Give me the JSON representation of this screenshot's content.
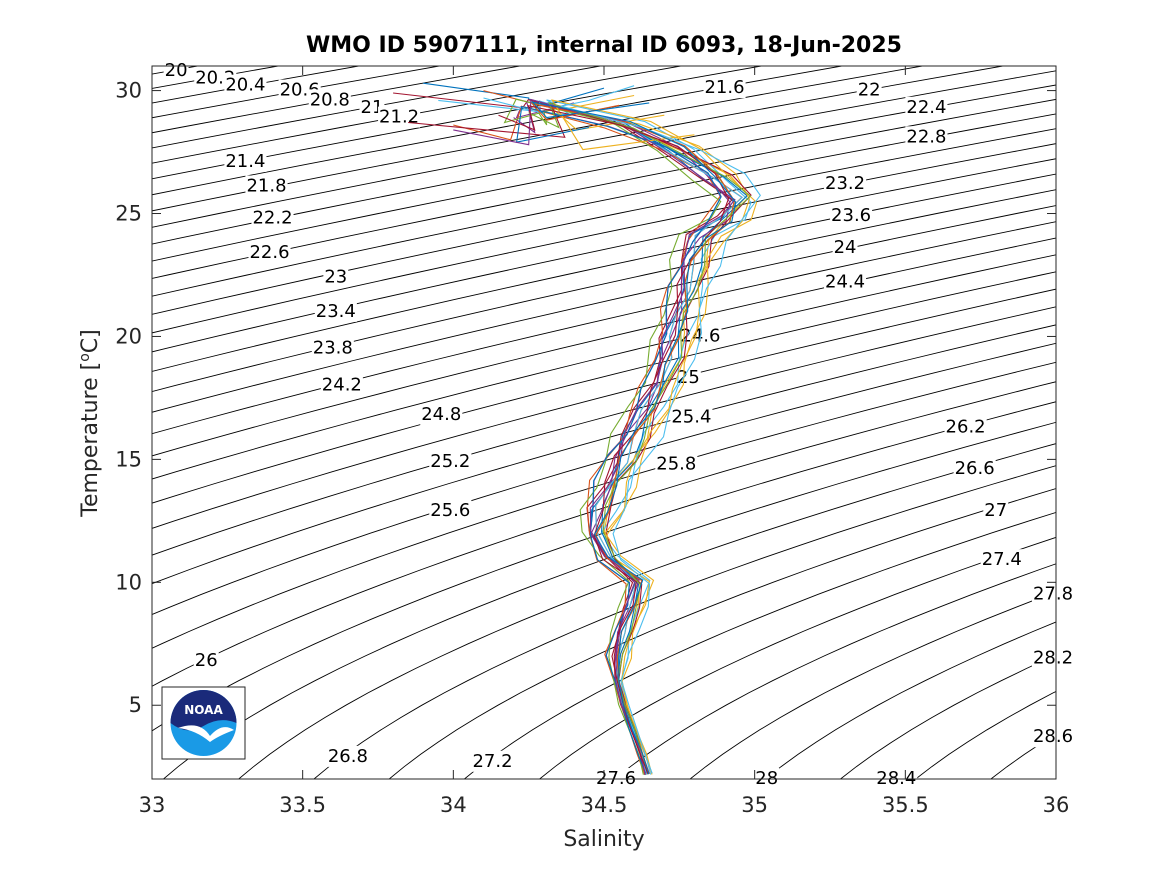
{
  "chart_data": {
    "type": "line",
    "title": "WMO ID 5907111, internal ID 6093, 18-Jun-2025",
    "xlabel": "Salinity",
    "ylabel": "Temperature [",
    "ylabel_sup": "o",
    "ylabel_unit": "C]",
    "xlim": [
      33,
      36
    ],
    "ylim": [
      2,
      31
    ],
    "xticks": [
      33,
      33.5,
      34,
      34.5,
      35,
      35.5,
      36
    ],
    "xtick_labels": [
      "33",
      "33.5",
      "34",
      "34.5",
      "35",
      "35.5",
      "36"
    ],
    "yticks": [
      5,
      10,
      15,
      20,
      25,
      30
    ],
    "ytick_labels": [
      "5",
      "10",
      "15",
      "20",
      "25",
      "30"
    ],
    "grid": false,
    "logo": "NOAA",
    "density_contours": {
      "levels_start": 20,
      "levels_end": 28.8,
      "levels_step": 0.2,
      "labels": [
        {
          "text": "20",
          "s": 33.08,
          "t": 30.8
        },
        {
          "text": "20.2",
          "s": 33.21,
          "t": 30.5
        },
        {
          "text": "20.4",
          "s": 33.31,
          "t": 30.2
        },
        {
          "text": "20.6",
          "s": 33.49,
          "t": 30.0
        },
        {
          "text": "20.8",
          "s": 33.59,
          "t": 29.6
        },
        {
          "text": "21",
          "s": 33.73,
          "t": 29.3
        },
        {
          "text": "21.2",
          "s": 33.82,
          "t": 28.9
        },
        {
          "text": "21.4",
          "s": 33.31,
          "t": 27.1
        },
        {
          "text": "21.8",
          "s": 33.38,
          "t": 26.1
        },
        {
          "text": "22.2",
          "s": 33.4,
          "t": 24.8
        },
        {
          "text": "22.6",
          "s": 33.39,
          "t": 23.4
        },
        {
          "text": "23",
          "s": 33.61,
          "t": 22.4
        },
        {
          "text": "23.4",
          "s": 33.61,
          "t": 21.0
        },
        {
          "text": "23.8",
          "s": 33.6,
          "t": 19.5
        },
        {
          "text": "24.2",
          "s": 33.63,
          "t": 18.0
        },
        {
          "text": "24.8",
          "s": 33.96,
          "t": 16.8
        },
        {
          "text": "25.2",
          "s": 33.99,
          "t": 14.9
        },
        {
          "text": "25.6",
          "s": 33.99,
          "t": 12.9
        },
        {
          "text": "26",
          "s": 33.18,
          "t": 6.8
        },
        {
          "text": "26.8",
          "s": 33.65,
          "t": 2.9
        },
        {
          "text": "27.2",
          "s": 34.13,
          "t": 2.7
        },
        {
          "text": "27.6",
          "s": 34.54,
          "t": 2.0
        },
        {
          "text": "28",
          "s": 35.04,
          "t": 2.0
        },
        {
          "text": "28.4",
          "s": 35.47,
          "t": 2.0
        },
        {
          "text": "21.6",
          "s": 34.9,
          "t": 30.1
        },
        {
          "text": "22",
          "s": 35.38,
          "t": 30.0
        },
        {
          "text": "22.4",
          "s": 35.57,
          "t": 29.3
        },
        {
          "text": "22.8",
          "s": 35.57,
          "t": 28.1
        },
        {
          "text": "23.2",
          "s": 35.3,
          "t": 26.2
        },
        {
          "text": "23.6",
          "s": 35.32,
          "t": 24.9
        },
        {
          "text": "24",
          "s": 35.3,
          "t": 23.6
        },
        {
          "text": "24.4",
          "s": 35.3,
          "t": 22.2
        },
        {
          "text": "24.6",
          "s": 34.82,
          "t": 20.0
        },
        {
          "text": "25",
          "s": 34.78,
          "t": 18.3
        },
        {
          "text": "25.4",
          "s": 34.79,
          "t": 16.7
        },
        {
          "text": "25.8",
          "s": 34.74,
          "t": 14.8
        },
        {
          "text": "26.2",
          "s": 35.7,
          "t": 16.3
        },
        {
          "text": "26.6",
          "s": 35.73,
          "t": 14.6
        },
        {
          "text": "27",
          "s": 35.8,
          "t": 12.9
        },
        {
          "text": "27.4",
          "s": 35.82,
          "t": 10.9
        },
        {
          "text": "27.8",
          "s": 35.99,
          "t": 9.5
        },
        {
          "text": "28.2",
          "s": 35.99,
          "t": 6.9
        },
        {
          "text": "28.6",
          "s": 35.99,
          "t": 3.7
        }
      ]
    },
    "series": [
      {
        "color": "#0072BD",
        "s_offset": 0.0,
        "t_scale": 1.0,
        "start_s": 33.9,
        "surface_t": 30.3
      },
      {
        "color": "#D95319",
        "s_offset": 0.02,
        "t_scale": 1.0,
        "start_s": 34.1,
        "surface_t": 30.0
      },
      {
        "color": "#EDB120",
        "s_offset": 0.05,
        "t_scale": 1.0,
        "start_s": 34.6,
        "surface_t": 29.8
      },
      {
        "color": "#7E2F8E",
        "s_offset": -0.02,
        "t_scale": 1.0,
        "start_s": 34.4,
        "surface_t": 29.5
      },
      {
        "color": "#77AC30",
        "s_offset": 0.03,
        "t_scale": 1.0,
        "start_s": 34.3,
        "surface_t": 29.2
      },
      {
        "color": "#4DBEEE",
        "s_offset": 0.07,
        "t_scale": 1.0,
        "start_s": 33.95,
        "surface_t": 29.6
      },
      {
        "color": "#A2142F",
        "s_offset": -0.01,
        "t_scale": 1.0,
        "start_s": 33.8,
        "surface_t": 29.9
      },
      {
        "color": "#0072BD",
        "s_offset": 0.04,
        "t_scale": 1.0,
        "start_s": 34.5,
        "surface_t": 30.1
      },
      {
        "color": "#D95319",
        "s_offset": -0.03,
        "t_scale": 1.0,
        "start_s": 34.0,
        "surface_t": 28.6
      },
      {
        "color": "#EDB120",
        "s_offset": 0.08,
        "t_scale": 1.0,
        "start_s": 34.7,
        "surface_t": 29.0
      },
      {
        "color": "#7E2F8E",
        "s_offset": 0.01,
        "t_scale": 1.0,
        "start_s": 34.2,
        "surface_t": 28.9
      },
      {
        "color": "#77AC30",
        "s_offset": -0.04,
        "t_scale": 1.0,
        "start_s": 34.35,
        "surface_t": 29.3
      },
      {
        "color": "#4DBEEE",
        "s_offset": 0.02,
        "t_scale": 1.0,
        "start_s": 34.1,
        "surface_t": 29.7
      },
      {
        "color": "#A2142F",
        "s_offset": 0.06,
        "t_scale": 1.0,
        "start_s": 33.85,
        "surface_t": 28.7
      },
      {
        "color": "#0072BD",
        "s_offset": -0.02,
        "t_scale": 1.0,
        "start_s": 34.45,
        "surface_t": 28.5
      },
      {
        "color": "#D95319",
        "s_offset": 0.03,
        "t_scale": 1.0,
        "start_s": 34.55,
        "surface_t": 29.4
      },
      {
        "color": "#EDB120",
        "s_offset": 0.09,
        "t_scale": 1.0,
        "start_s": 34.8,
        "surface_t": 28.2
      },
      {
        "color": "#7E2F8E",
        "s_offset": 0.0,
        "t_scale": 1.0,
        "start_s": 34.0,
        "surface_t": 28.4
      },
      {
        "color": "#77AC30",
        "s_offset": 0.05,
        "t_scale": 1.0,
        "start_s": 34.25,
        "surface_t": 29.1
      },
      {
        "color": "#4DBEEE",
        "s_offset": 0.1,
        "t_scale": 1.0,
        "start_s": 34.6,
        "surface_t": 30.2
      },
      {
        "color": "#A2142F",
        "s_offset": 0.01,
        "t_scale": 1.0,
        "start_s": 34.15,
        "surface_t": 29.0
      },
      {
        "color": "#0072BD",
        "s_offset": 0.03,
        "t_scale": 1.0,
        "start_s": 34.65,
        "surface_t": 29.5
      }
    ],
    "mean_profile": [
      [
        34.25,
        29.5
      ],
      [
        34.55,
        28.6
      ],
      [
        34.72,
        27.6
      ],
      [
        34.85,
        26.5
      ],
      [
        34.92,
        25.6
      ],
      [
        34.88,
        24.8
      ],
      [
        34.8,
        24.0
      ],
      [
        34.77,
        23.0
      ],
      [
        34.75,
        22.0
      ],
      [
        34.73,
        21.0
      ],
      [
        34.71,
        20.0
      ],
      [
        34.69,
        19.0
      ],
      [
        34.66,
        18.0
      ],
      [
        34.62,
        17.0
      ],
      [
        34.58,
        16.0
      ],
      [
        34.54,
        15.0
      ],
      [
        34.5,
        14.0
      ],
      [
        34.47,
        13.0
      ],
      [
        34.46,
        12.0
      ],
      [
        34.5,
        11.0
      ],
      [
        34.6,
        10.0
      ],
      [
        34.58,
        9.0
      ],
      [
        34.55,
        8.0
      ],
      [
        34.53,
        7.0
      ],
      [
        34.54,
        6.0
      ],
      [
        34.56,
        5.0
      ],
      [
        34.59,
        4.0
      ],
      [
        34.62,
        3.0
      ],
      [
        34.64,
        2.2
      ]
    ]
  }
}
